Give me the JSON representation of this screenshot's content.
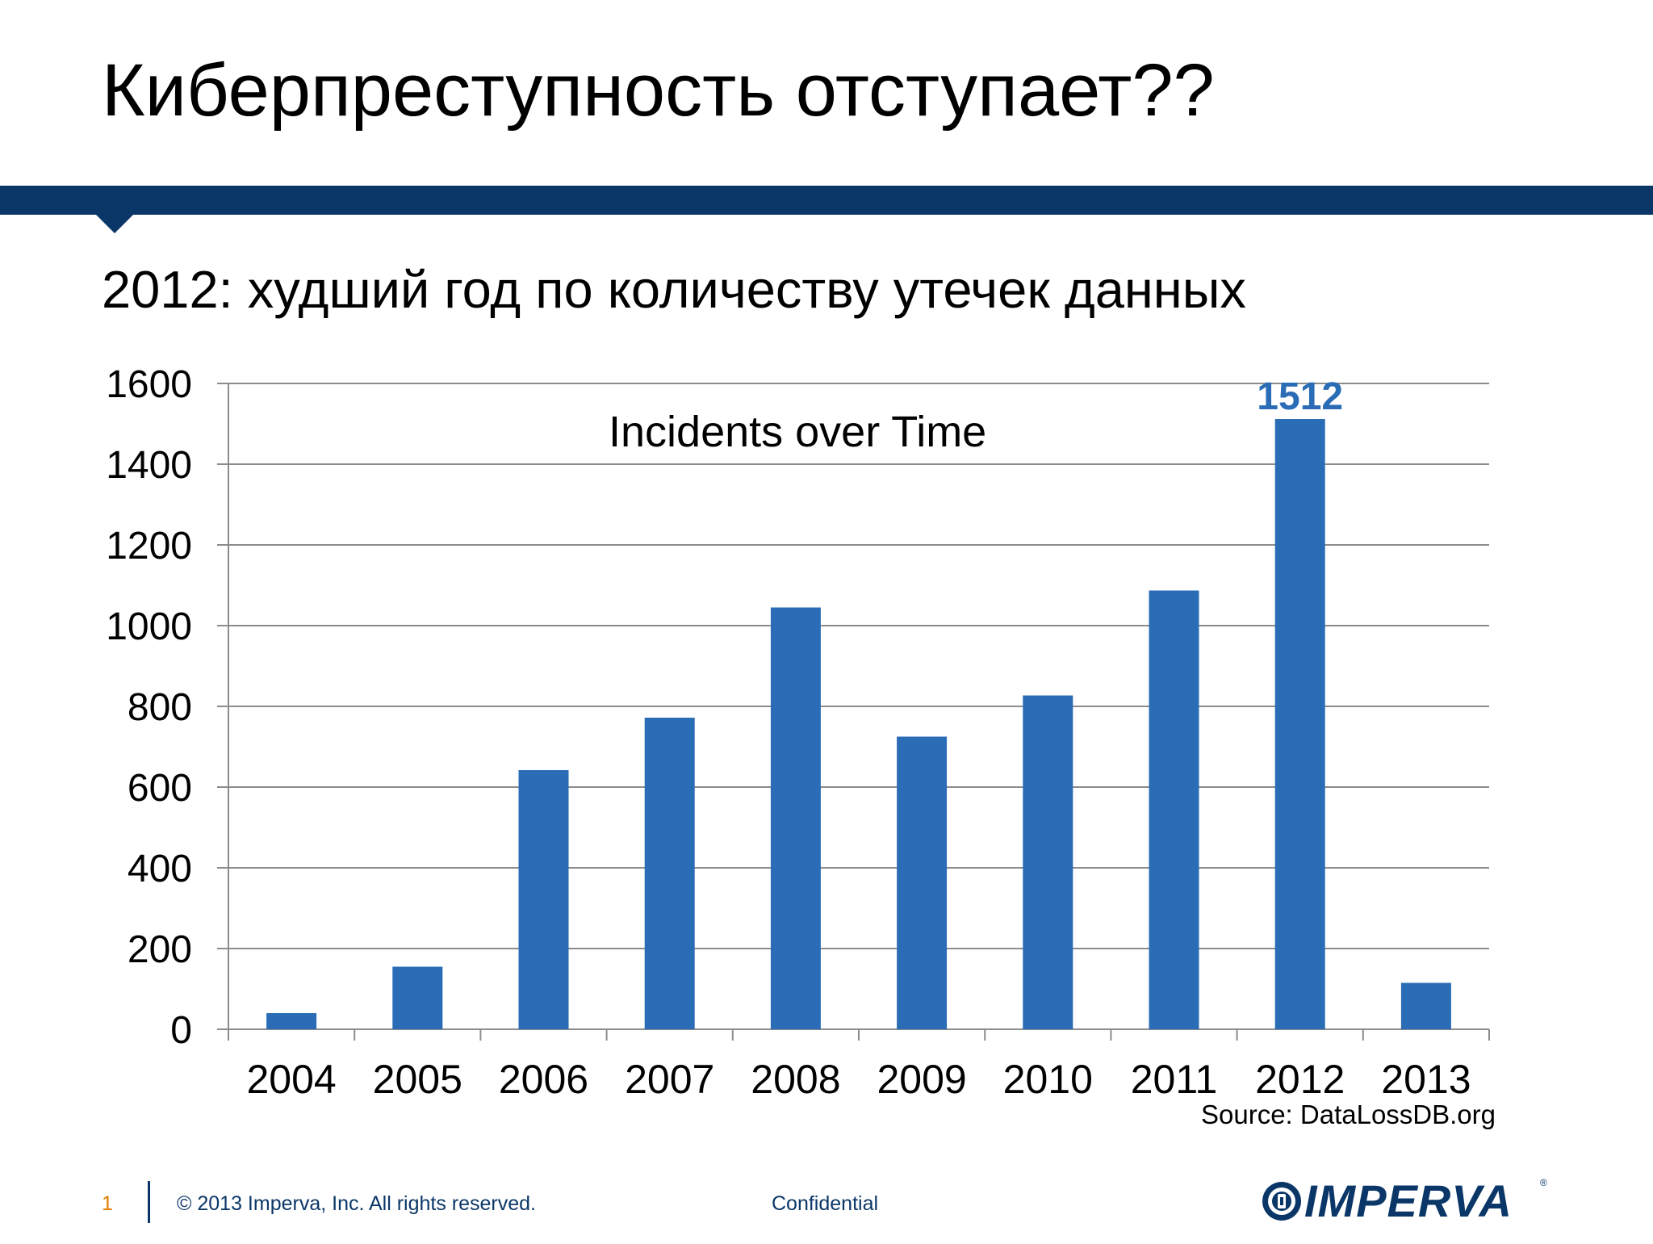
{
  "slide": {
    "title": "Киберпреступность отступает??",
    "subtitle": "2012: худший год по количеству утечек данных",
    "source": "Source: DataLossDB.org"
  },
  "footer": {
    "page_number": "1",
    "copyright": "© 2013 Imperva, Inc. All rights reserved.",
    "confidential": "Confidential",
    "logo_text": "IMPERVA",
    "logo_reg": "®"
  },
  "colors": {
    "title_bar": "#0b3768",
    "bar": "#2a6db6",
    "data_label": "#2a6db6",
    "grid": "#8c8c8c",
    "page_number": "#e07b00"
  },
  "chart_data": {
    "type": "bar",
    "title": "Incidents over Time",
    "xlabel": "",
    "ylabel": "",
    "categories": [
      "2004",
      "2005",
      "2006",
      "2007",
      "2008",
      "2009",
      "2010",
      "2011",
      "2012",
      "2013"
    ],
    "values": [
      40,
      155,
      642,
      772,
      1045,
      725,
      827,
      1087,
      1512,
      115
    ],
    "ylim": [
      0,
      1600
    ],
    "yticks": [
      0,
      200,
      400,
      600,
      800,
      1000,
      1200,
      1400,
      1600
    ],
    "grid": true,
    "data_labels": [
      {
        "category": "2012",
        "text": "1512"
      }
    ]
  }
}
